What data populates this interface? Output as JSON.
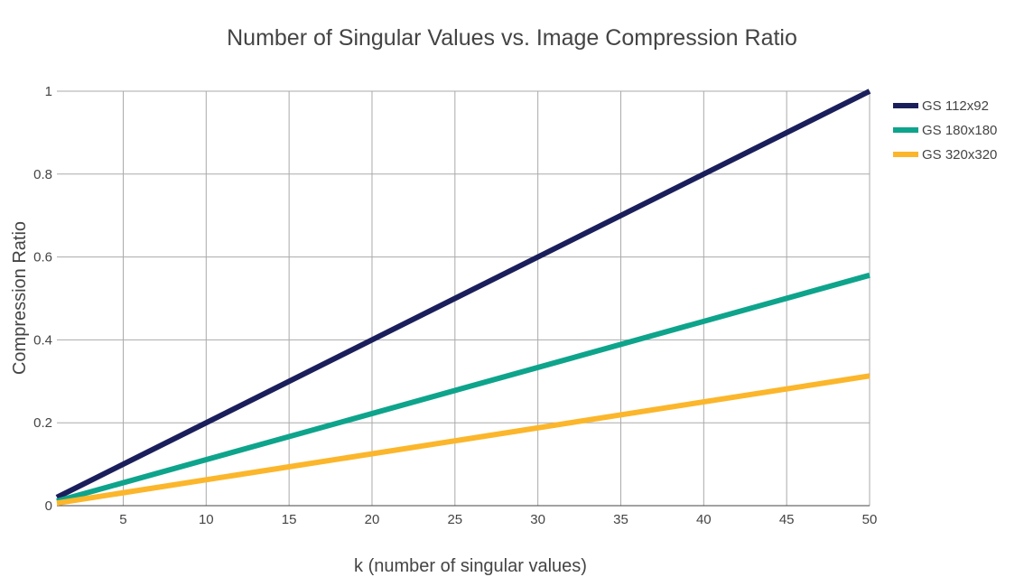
{
  "chart_data": {
    "type": "line",
    "title": "Number of Singular Values vs. Image Compression Ratio",
    "xlabel": "k (number of singular values)",
    "ylabel": "Compression Ratio",
    "xlim": [
      1,
      50
    ],
    "ylim": [
      0,
      1
    ],
    "xticks": [
      5,
      10,
      15,
      20,
      25,
      30,
      35,
      40,
      45,
      50
    ],
    "yticks": [
      0,
      0.2,
      0.4,
      0.6,
      0.8,
      1
    ],
    "grid": true,
    "legend_position": "top-right",
    "series": [
      {
        "name": "GS 112x92",
        "color": "#1a1f5c",
        "x": [
          1,
          50
        ],
        "values": [
          0.02,
          1.0
        ]
      },
      {
        "name": "GS 180x180",
        "color": "#0ea48c",
        "x": [
          1,
          50
        ],
        "values": [
          0.011,
          0.556
        ]
      },
      {
        "name": "GS 320x320",
        "color": "#fbb62b",
        "x": [
          1,
          50
        ],
        "values": [
          0.006,
          0.313
        ]
      }
    ]
  }
}
